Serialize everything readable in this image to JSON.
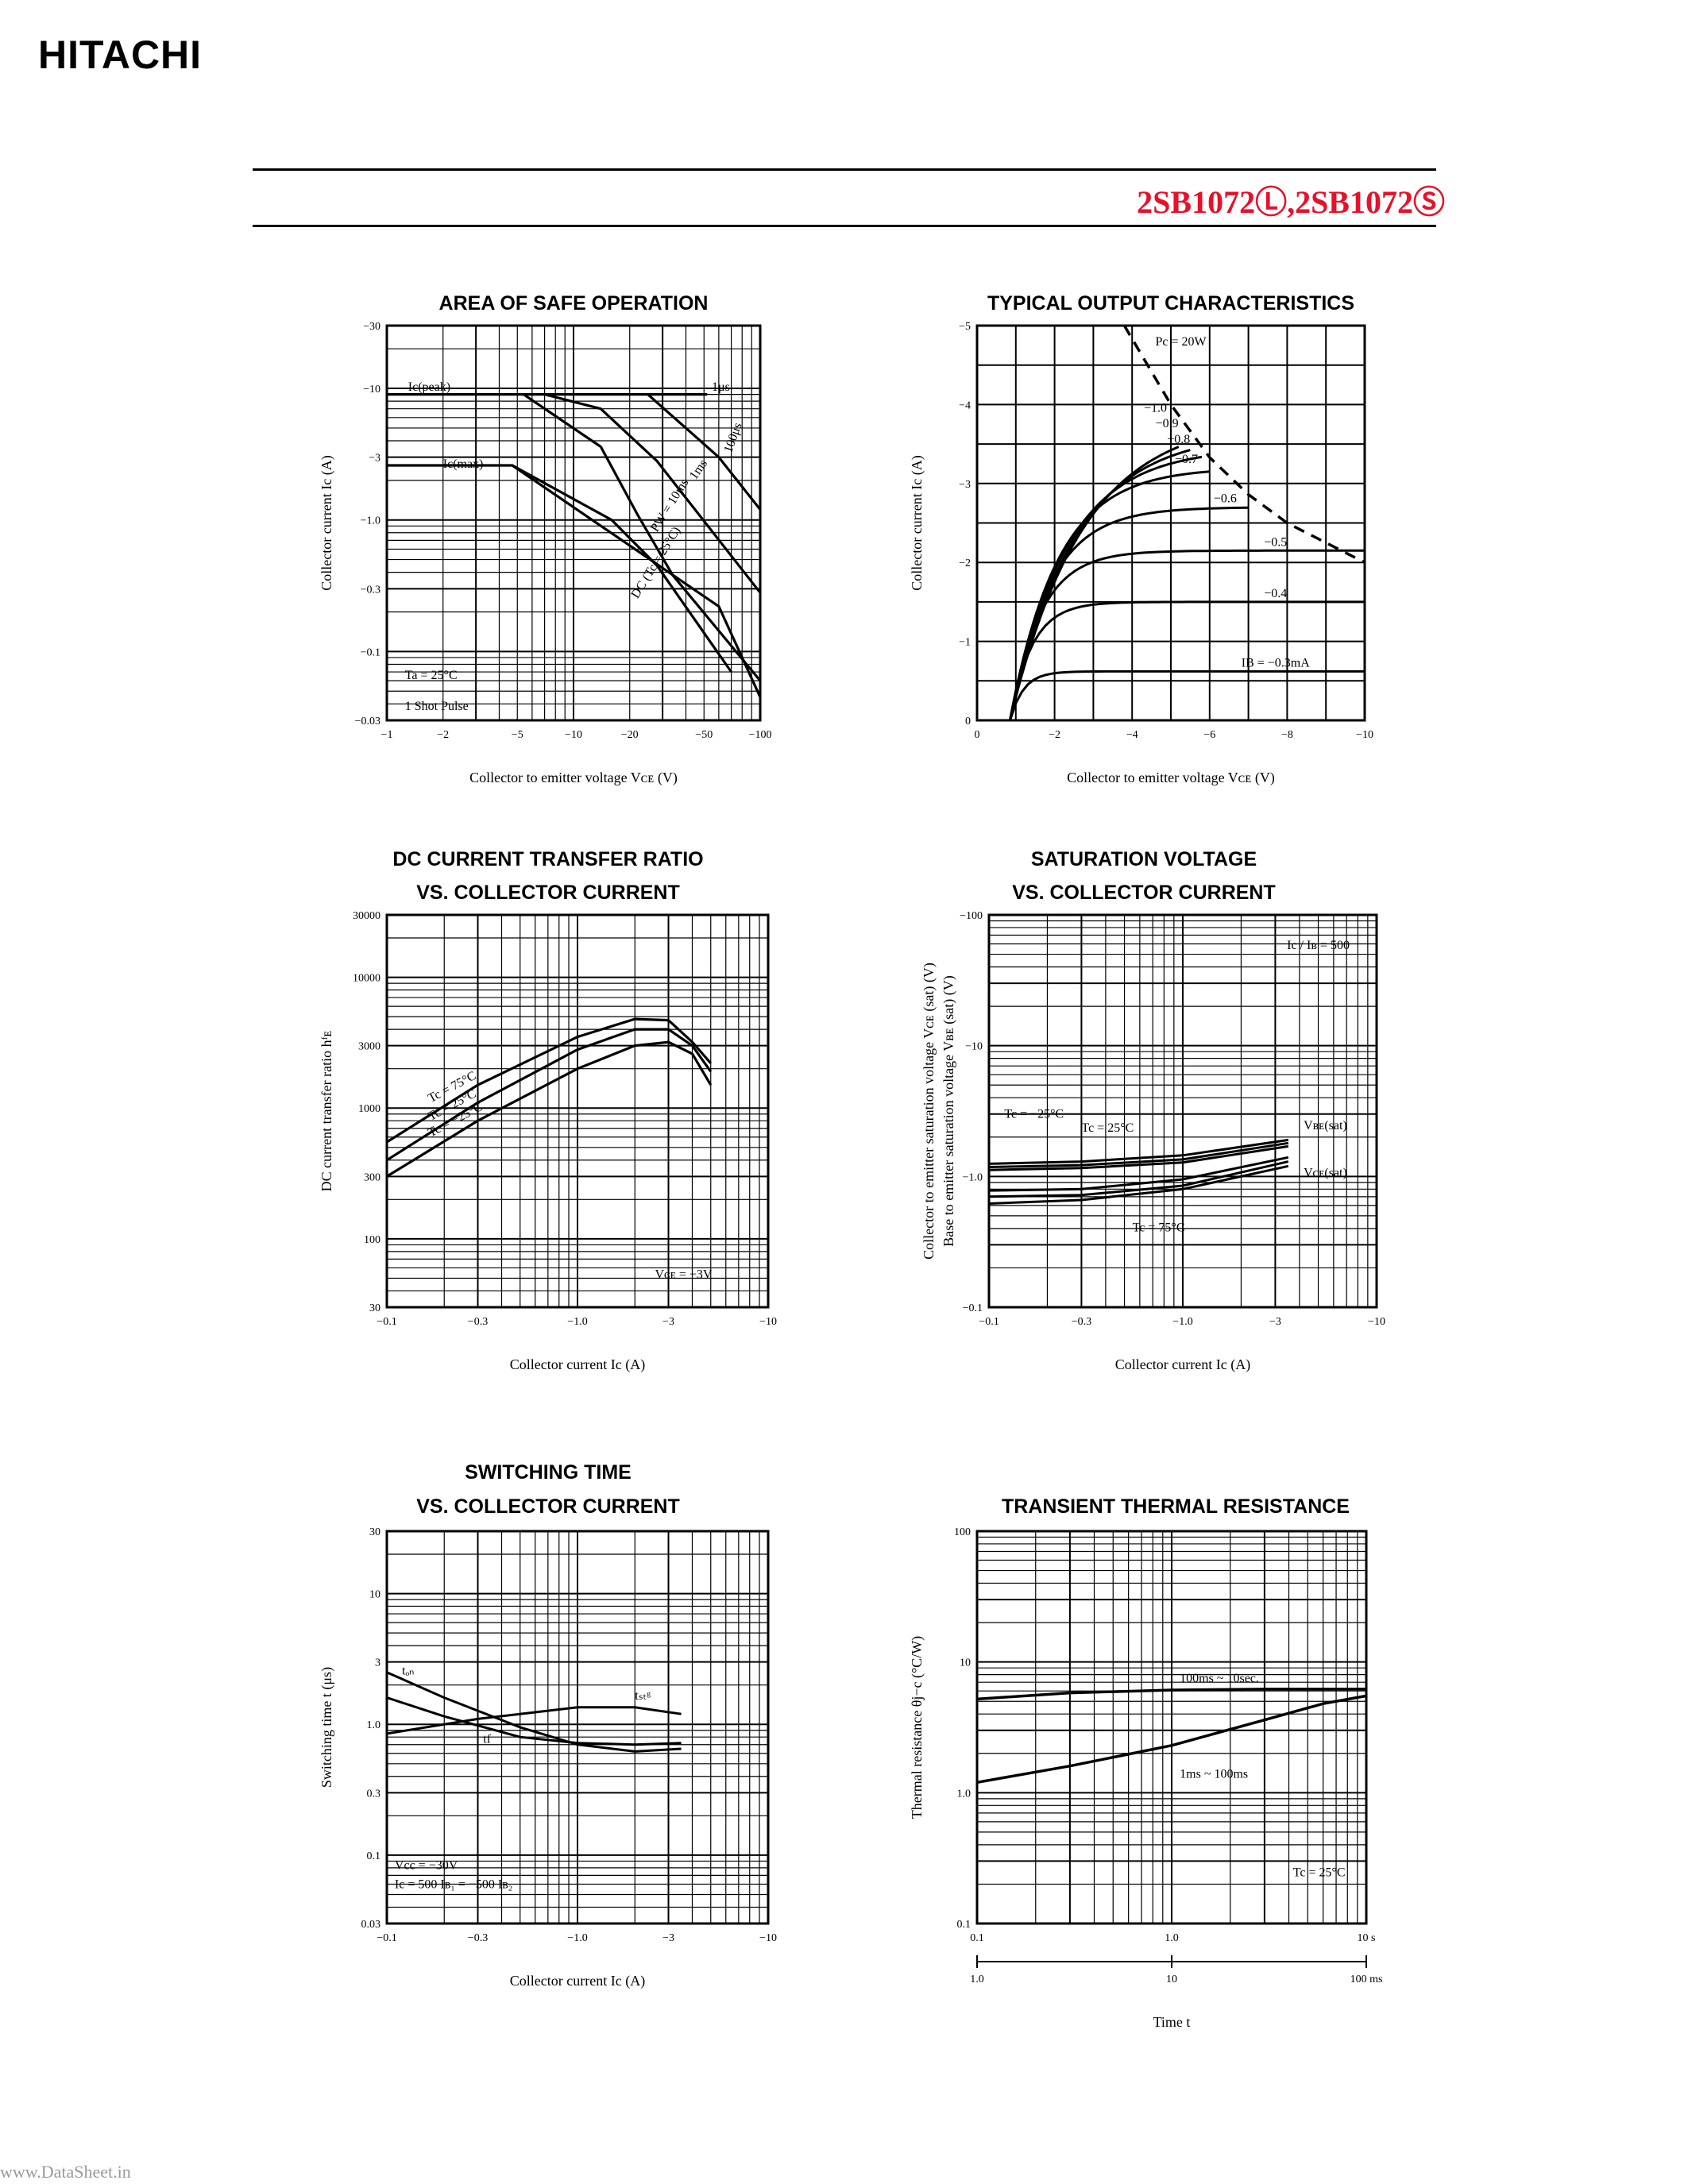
{
  "header": {
    "brand": "HITACHI",
    "part_number": "2SB1072Ⓛ,2SB1072Ⓢ"
  },
  "footer": {
    "url": "www.DataSheet.in"
  },
  "chart_data": [
    {
      "id": "aso",
      "type": "line",
      "title": "AREA OF SAFE OPERATION",
      "xlabel": "Collector to emitter voltage  Vᴄᴇ (V)",
      "ylabel": "Collector current  Ic (A)",
      "xscale": "log",
      "yscale": "log",
      "xlim": [
        -1,
        -100
      ],
      "ylim": [
        -0.03,
        -30
      ],
      "xticks": [
        "−1",
        "−2",
        "−5",
        "−10",
        "−20",
        "−50",
        "−100"
      ],
      "yticks": [
        "−30",
        "−10",
        "−3",
        "−1.0",
        "−0.3",
        "−0.1",
        "−0.03"
      ],
      "series": [
        {
          "name": "Ic(peak)",
          "x": [
            1,
            25,
            52
          ],
          "y": [
            9,
            9,
            9
          ]
        },
        {
          "name": "Ic(max)",
          "x": [
            1,
            4.7,
            16,
            28,
            70
          ],
          "y": [
            2.6,
            2.6,
            1.0,
            0.45,
            0.07
          ]
        },
        {
          "name": "PW = 10ms",
          "x": [
            5.4,
            14,
            22,
            34,
            100
          ],
          "y": [
            9,
            3.6,
            1.1,
            0.38,
            0.06
          ]
        },
        {
          "name": "1ms",
          "x": [
            7,
            14,
            28,
            100
          ],
          "y": [
            9,
            7,
            2.8,
            0.28
          ]
        },
        {
          "name": "100μs",
          "x": [
            25,
            60,
            100
          ],
          "y": [
            9,
            3,
            1.2
          ]
        },
        {
          "name": "DC (Tc = 25°C)",
          "x": [
            4.7,
            60,
            100
          ],
          "y": [
            2.6,
            0.22,
            0.045
          ]
        }
      ],
      "annotations": [
        "Ic(peak)",
        "Ic(max)",
        "1μs",
        "100μs",
        "1ms",
        "PW = 10ms",
        "DC (Tc = 25°C)",
        "Ta = 25°C",
        "1 Shot Pulse"
      ]
    },
    {
      "id": "toc",
      "type": "line",
      "title": "TYPICAL OUTPUT CHARACTERISTICS",
      "xlabel": "Collector to emitter voltage  Vᴄᴇ (V)",
      "ylabel": "Collector current  Ic (A)",
      "xlim": [
        0,
        -10
      ],
      "ylim": [
        0,
        -5
      ],
      "xticks": [
        "0",
        "−2",
        "−4",
        "−6",
        "−8",
        "−10"
      ],
      "yticks": [
        "0",
        "−1",
        "−2",
        "−3",
        "−4",
        "−5"
      ],
      "series": [
        {
          "name": "IB = −0.3mA",
          "sat": 0.62,
          "end": 10
        },
        {
          "name": "−0.4",
          "sat": 1.5,
          "end": 10
        },
        {
          "name": "−0.5",
          "sat": 2.15,
          "end": 10
        },
        {
          "name": "−0.6",
          "sat": 2.7,
          "end": 7.0
        },
        {
          "name": "−0.7",
          "sat": 3.2,
          "end": 6.0
        },
        {
          "name": "−0.8",
          "sat": 3.45,
          "end": 5.8
        },
        {
          "name": "−0.9",
          "sat": 3.65,
          "end": 5.5
        },
        {
          "name": "−1.0",
          "sat": 3.85,
          "end": 5.2
        }
      ],
      "pc_limit": {
        "name": "Pc = 20W",
        "x": [
          3.8,
          5,
          6,
          7,
          8,
          10
        ],
        "y": [
          5,
          4,
          3.33,
          2.86,
          2.5,
          2.0
        ]
      }
    },
    {
      "id": "hfe",
      "type": "line",
      "title": "DC CURRENT TRANSFER RATIO VS. COLLECTOR CURRENT",
      "xlabel": "Collector current  Ic (A)",
      "ylabel": "DC current transfer ratio  hᶠᴇ",
      "xscale": "log",
      "yscale": "log",
      "xlim": [
        -0.1,
        -10
      ],
      "ylim": [
        30,
        30000
      ],
      "xticks": [
        "−0.1",
        "−0.3",
        "−1.0",
        "−3",
        "−10"
      ],
      "yticks": [
        "30000",
        "10000",
        "3000",
        "1000",
        "300",
        "100",
        "30"
      ],
      "series": [
        {
          "name": "Tc = 75°C",
          "x": [
            0.1,
            0.3,
            1,
            2,
            3,
            4,
            5
          ],
          "y": [
            550,
            1500,
            3500,
            4800,
            4700,
            3200,
            2200
          ]
        },
        {
          "name": "Tc = 25°C",
          "x": [
            0.1,
            0.3,
            1,
            2,
            3,
            4,
            5
          ],
          "y": [
            400,
            1100,
            2800,
            4000,
            4000,
            3000,
            1900
          ]
        },
        {
          "name": "Tc = −25°C",
          "x": [
            0.1,
            0.3,
            1,
            2,
            3,
            4,
            5
          ],
          "y": [
            300,
            800,
            2000,
            3000,
            3200,
            2600,
            1500
          ]
        }
      ],
      "annotations": [
        "Vᴄᴇ = −3V"
      ]
    },
    {
      "id": "sat",
      "type": "line",
      "title": "SATURATION VOLTAGE VS. COLLECTOR CURRENT",
      "xlabel": "Collector current  Ic (A)",
      "ylabel": "Collector to emitter saturation voltage  Vᴄᴇ (sat) (V)",
      "ylabel2": "Base to emitter saturation voltage  Vʙᴇ (sat) (V)",
      "xscale": "log",
      "yscale": "log",
      "xlim": [
        -0.1,
        -10
      ],
      "ylim": [
        -0.1,
        -100
      ],
      "xticks": [
        "−0.1",
        "−0.3",
        "−1.0",
        "−3",
        "−10"
      ],
      "yticks": [
        "−100",
        "−10",
        "−1.0",
        "−0.1"
      ],
      "series": [
        {
          "name": "VBE(sat) Tc = −25°C",
          "x": [
            0.1,
            0.3,
            1,
            3.5
          ],
          "y": [
            1.25,
            1.3,
            1.45,
            1.9
          ]
        },
        {
          "name": "VBE(sat) Tc = 25°C",
          "x": [
            0.1,
            0.3,
            1,
            3.5
          ],
          "y": [
            1.18,
            1.22,
            1.35,
            1.8
          ]
        },
        {
          "name": "VBE(sat) Tc = 75°C",
          "x": [
            0.1,
            0.3,
            1,
            3.5
          ],
          "y": [
            1.12,
            1.16,
            1.28,
            1.7
          ]
        },
        {
          "name": "VCE(sat) Tc = −25°C",
          "x": [
            0.1,
            0.3,
            1,
            3.5
          ],
          "y": [
            0.78,
            0.8,
            0.95,
            1.4
          ]
        },
        {
          "name": "VCE(sat) Tc = 25°C",
          "x": [
            0.1,
            0.3,
            1,
            3.5
          ],
          "y": [
            0.7,
            0.72,
            0.85,
            1.3
          ]
        },
        {
          "name": "VCE(sat) Tc = 75°C",
          "x": [
            0.1,
            0.3,
            1,
            3.5
          ],
          "y": [
            0.62,
            0.66,
            0.8,
            1.2
          ]
        }
      ],
      "annotations": [
        "Ic / Iʙ = 500",
        "Tc = −25°C",
        "Tc = 25°C",
        "Tc = 75°C",
        "Vʙᴇ(sat)",
        "Vᴄᴇ(sat)"
      ]
    },
    {
      "id": "sw",
      "type": "line",
      "title": "SWITCHING TIME VS. COLLECTOR CURRENT",
      "xlabel": "Collector current  Ic (A)",
      "ylabel": "Switching time  t (μs)",
      "xscale": "log",
      "yscale": "log",
      "xlim": [
        -0.1,
        -10
      ],
      "ylim": [
        0.03,
        30
      ],
      "xticks": [
        "−0.1",
        "−0.3",
        "−1.0",
        "−3",
        "−10"
      ],
      "yticks": [
        "30",
        "10",
        "3",
        "1.0",
        "0.3",
        "0.1",
        "0.03"
      ],
      "series": [
        {
          "name": "ton",
          "x": [
            0.1,
            0.2,
            0.5,
            1,
            2,
            3.5
          ],
          "y": [
            2.5,
            1.6,
            0.95,
            0.7,
            0.62,
            0.65
          ]
        },
        {
          "name": "tstg",
          "x": [
            0.1,
            0.3,
            1,
            2,
            3.5
          ],
          "y": [
            0.85,
            1.1,
            1.35,
            1.35,
            1.2
          ]
        },
        {
          "name": "tf",
          "x": [
            0.1,
            0.2,
            0.5,
            1,
            2,
            3.5
          ],
          "y": [
            1.6,
            1.15,
            0.8,
            0.72,
            0.7,
            0.72
          ]
        }
      ],
      "annotations": [
        "tₒₙ",
        "tₛₜᵍ",
        "tf",
        "Vcc = −30V",
        "Ic = 500 Iʙ₁ = −500 Iʙ₂"
      ]
    },
    {
      "id": "ttr",
      "type": "line",
      "title": "TRANSIENT THERMAL RESISTANCE",
      "xlabel": "Time  t",
      "ylabel": "Thermal resistance  θj−c (°C/W)",
      "xscale": "log",
      "yscale": "log",
      "xlim": [
        0.1,
        10
      ],
      "ylim": [
        0.1,
        100
      ],
      "xticks": [
        "0.1",
        "1.0",
        "10 s"
      ],
      "xticks2": [
        "1.0",
        "10",
        "100 ms"
      ],
      "yticks": [
        "100",
        "10",
        "1.0",
        "0.1"
      ],
      "series": [
        {
          "name": "100ms ~ 10sec.",
          "x": [
            0.1,
            0.3,
            1,
            3,
            10
          ],
          "y": [
            5.2,
            5.8,
            6.1,
            6.2,
            6.2
          ]
        },
        {
          "name": "1ms ~ 100ms",
          "x": [
            0.1,
            0.3,
            1,
            3,
            6,
            10
          ],
          "y": [
            1.2,
            1.6,
            2.3,
            3.6,
            4.8,
            5.5
          ]
        }
      ],
      "annotations": [
        "Tc = 25°C"
      ]
    }
  ]
}
